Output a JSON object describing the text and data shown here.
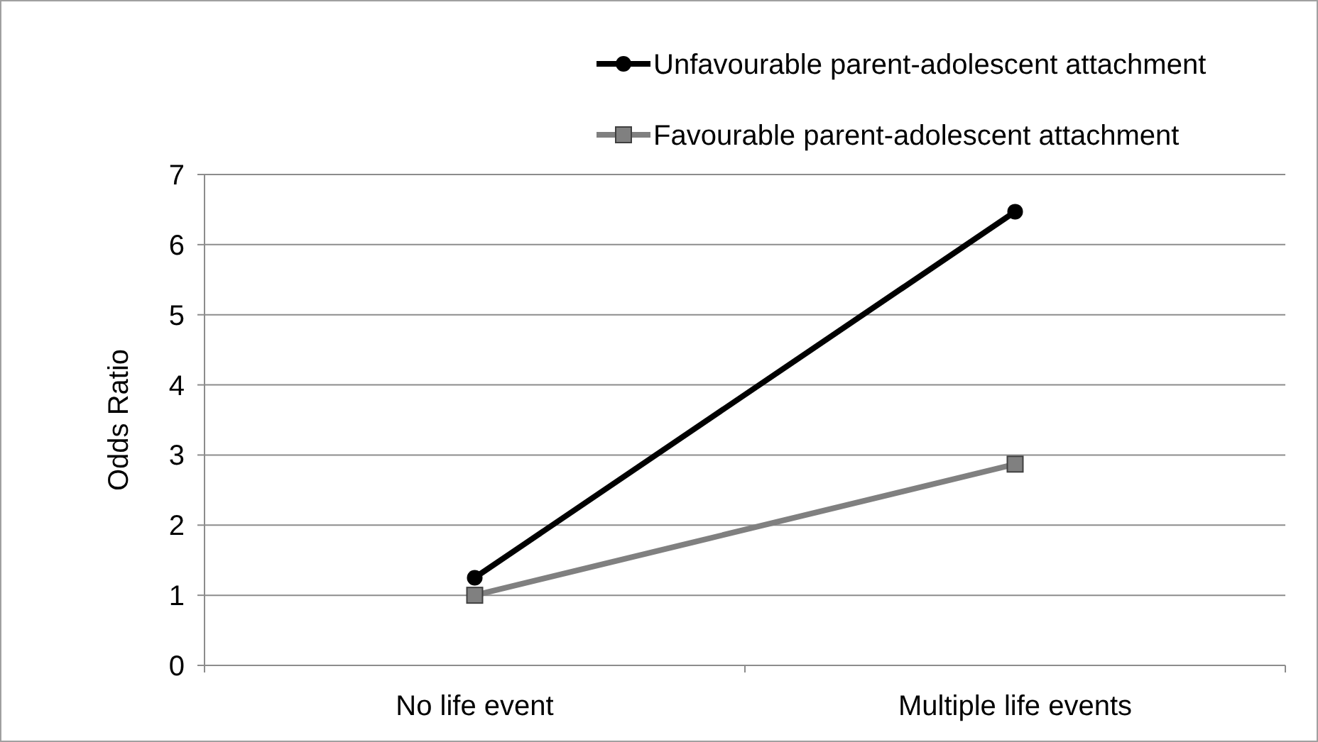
{
  "chart_data": {
    "type": "line",
    "ylabel": "Odds Ratio",
    "categories": [
      "No life event",
      "Multiple life events"
    ],
    "series": [
      {
        "name": "Unfavourable parent-adolescent attachment",
        "color": "#000000",
        "values": [
          1.25,
          6.47
        ],
        "marker": "circle"
      },
      {
        "name": "Favourable parent-adolescent attachment",
        "color": "#808080",
        "values": [
          1,
          2.87
        ],
        "marker": "square"
      }
    ],
    "ylim": [
      0,
      7
    ],
    "yticks": [
      0,
      1,
      2,
      3,
      4,
      5,
      6,
      7
    ],
    "grid": "y",
    "legend": "top right"
  }
}
